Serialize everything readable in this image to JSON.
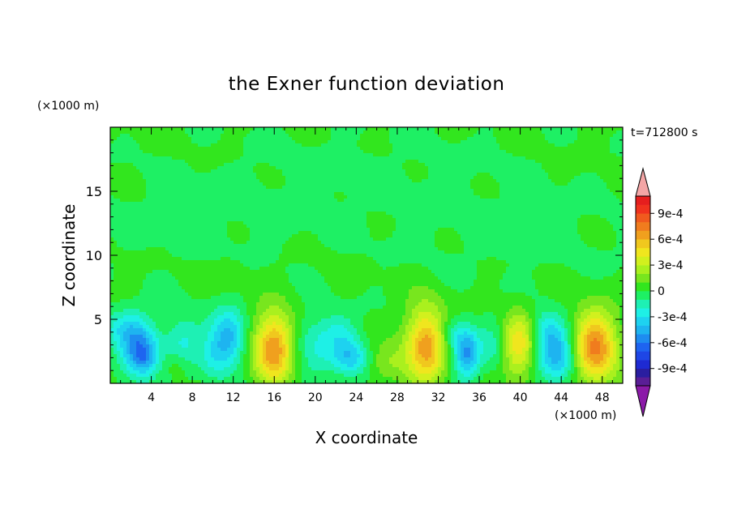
{
  "chart_data": {
    "type": "heatmap",
    "title": "the Exner function deviation",
    "xlabel": "X coordinate",
    "ylabel": "Z coordinate",
    "x_unit": "(×1000 m)",
    "y_unit": "(×1000 m)",
    "time_label": "t=712800 s",
    "xlim": [
      0,
      50
    ],
    "ylim": [
      0,
      20
    ],
    "x_ticks": [
      4,
      8,
      12,
      16,
      20,
      24,
      28,
      32,
      36,
      40,
      44,
      48
    ],
    "y_ticks": [
      5,
      10,
      15
    ],
    "grid": false,
    "colorbar": {
      "placement": "right",
      "tick_labels": [
        "9e-4",
        "6e-4",
        "3e-4",
        "0",
        "-3e-4",
        "-6e-4",
        "-9e-4"
      ],
      "tick_values": [
        0.0009,
        0.0006,
        0.0003,
        0,
        -0.0003,
        -0.0006,
        -0.0009
      ],
      "levels": [
        -0.0011,
        -0.001,
        -0.0009,
        -0.0008,
        -0.0007,
        -0.0006,
        -0.0005,
        -0.0004,
        -0.0003,
        -0.0002,
        -0.0001,
        0,
        0.0001,
        0.0002,
        0.0003,
        0.0004,
        0.0005,
        0.0006,
        0.0007,
        0.0008,
        0.0009,
        0.001,
        0.0011
      ],
      "colors": [
        "#5a1e96",
        "#2a1ea0",
        "#1e2ad2",
        "#1e46e6",
        "#1e64f0",
        "#1e8cf0",
        "#1eb4f0",
        "#1ed2f0",
        "#1ef0e6",
        "#1ef0b4",
        "#1ef064",
        "#32e61e",
        "#78e61e",
        "#aaf01e",
        "#d2f01e",
        "#f0e61e",
        "#f0c81e",
        "#f0a01e",
        "#f07c1e",
        "#f05a1e",
        "#f0321e",
        "#e61e1e"
      ],
      "under_color": "#8b1aa8",
      "over_color": "#f4a6a6"
    },
    "field": {
      "background": 2e-05,
      "features": [
        {
          "x": 2.8,
          "z": 2.6,
          "sx": 1.3,
          "sz": 1.6,
          "amp": -0.00055
        },
        {
          "x": 3.4,
          "z": 2.0,
          "sx": 0.7,
          "sz": 0.8,
          "amp": -0.00015
        },
        {
          "x": 1.0,
          "z": 4.5,
          "sx": 1.5,
          "sz": 1.0,
          "amp": -0.0002
        },
        {
          "x": 7.0,
          "z": 3.0,
          "sx": 1.3,
          "sz": 1.6,
          "amp": -0.00025
        },
        {
          "x": 6.5,
          "z": 1.5,
          "sx": 1.0,
          "sz": 0.8,
          "amp": 0.00016
        },
        {
          "x": 11.5,
          "z": 3.6,
          "sx": 1.2,
          "sz": 1.5,
          "amp": -0.00048
        },
        {
          "x": 10.0,
          "z": 2.0,
          "sx": 1.0,
          "sz": 1.2,
          "amp": -0.00018
        },
        {
          "x": 16.0,
          "z": 2.8,
          "sx": 1.4,
          "sz": 1.9,
          "amp": 0.00072
        },
        {
          "x": 20.0,
          "z": 3.0,
          "sx": 2.0,
          "sz": 1.8,
          "amp": -0.00022
        },
        {
          "x": 23.5,
          "z": 2.0,
          "sx": 1.2,
          "sz": 1.0,
          "amp": -0.00035
        },
        {
          "x": 22.5,
          "z": 4.0,
          "sx": 1.2,
          "sz": 1.0,
          "amp": -0.00015
        },
        {
          "x": 27.0,
          "z": 1.5,
          "sx": 1.3,
          "sz": 1.0,
          "amp": 0.00018
        },
        {
          "x": 30.8,
          "z": 3.0,
          "sx": 1.4,
          "sz": 2.1,
          "amp": 0.00065
        },
        {
          "x": 34.8,
          "z": 2.2,
          "sx": 0.9,
          "sz": 1.3,
          "amp": -0.00052
        },
        {
          "x": 33.5,
          "z": 3.8,
          "sx": 1.1,
          "sz": 1.0,
          "amp": -0.0002
        },
        {
          "x": 37.5,
          "z": 3.0,
          "sx": 1.0,
          "sz": 1.5,
          "amp": -0.00015
        },
        {
          "x": 39.8,
          "z": 2.9,
          "sx": 1.1,
          "sz": 1.8,
          "amp": 0.00045
        },
        {
          "x": 43.6,
          "z": 2.3,
          "sx": 1.3,
          "sz": 1.5,
          "amp": -0.0005
        },
        {
          "x": 42.5,
          "z": 4.2,
          "sx": 1.0,
          "sz": 1.0,
          "amp": -0.0002
        },
        {
          "x": 47.3,
          "z": 2.8,
          "sx": 1.5,
          "sz": 2.0,
          "amp": 0.0007
        },
        {
          "x": 11.5,
          "z": 8.5,
          "sx": 1.2,
          "sz": 0.8,
          "amp": 0.0001
        },
        {
          "x": 25.0,
          "z": 16.0,
          "sx": 12.0,
          "sz": 3.0,
          "amp": -5e-05
        },
        {
          "x": 8.0,
          "z": 12.5,
          "sx": 8.0,
          "sz": 2.5,
          "amp": -5e-05
        },
        {
          "x": 40.0,
          "z": 11.5,
          "sx": 8.0,
          "sz": 2.5,
          "amp": -5e-05
        }
      ]
    }
  }
}
